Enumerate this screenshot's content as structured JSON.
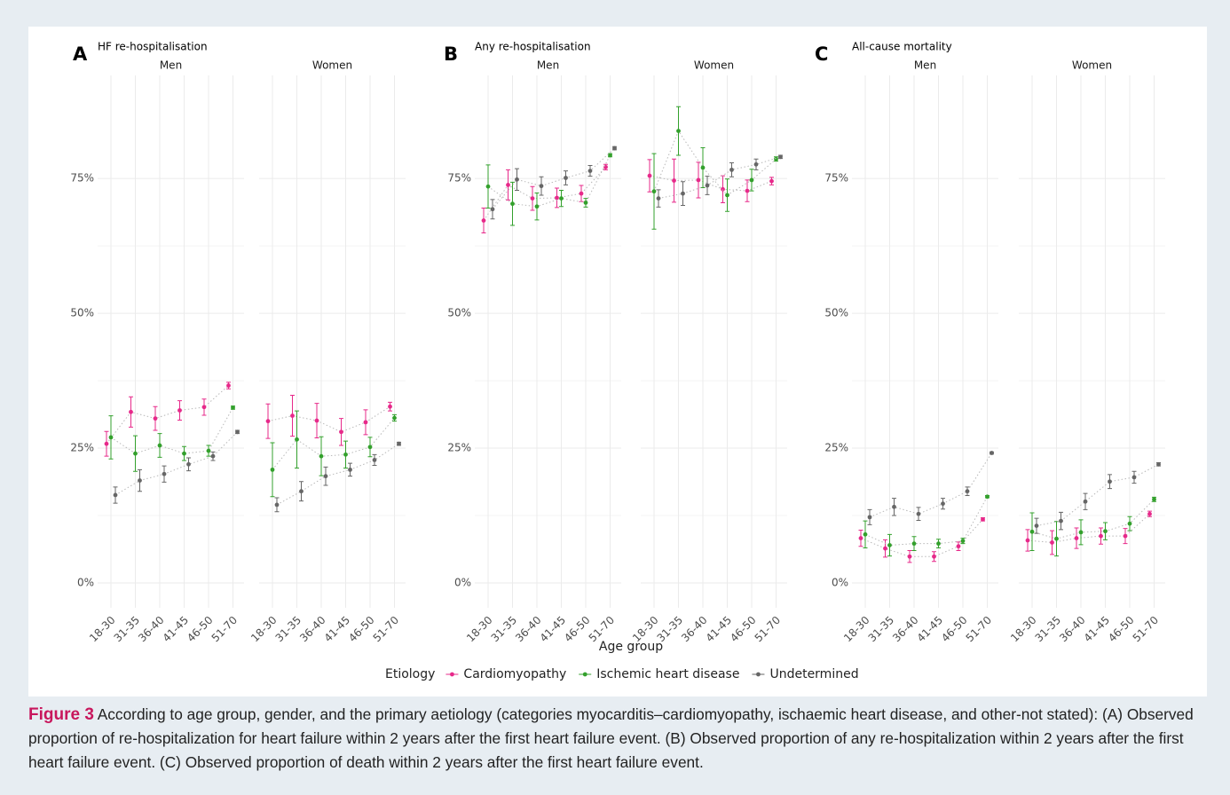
{
  "chart_data": [
    {
      "type": "line",
      "panel_label": "A",
      "title": "HF re-hospitalisation",
      "categories": [
        "18-30",
        "31-35",
        "36-40",
        "41-45",
        "46-50",
        "51-70"
      ],
      "ylim": [
        -4.6,
        94.1
      ],
      "yticks": [
        {
          "value": 0,
          "label": "0%"
        },
        {
          "value": 25,
          "label": "25%"
        },
        {
          "value": 50,
          "label": "50%"
        },
        {
          "value": 75,
          "label": "75%"
        }
      ],
      "grid": true,
      "facets": [
        {
          "name": "Men",
          "series": [
            {
              "name": "Cardiomyopathy",
              "color": "#e7298a",
              "values": [
                25.8,
                31.7,
                30.5,
                32,
                32.6,
                36.6
              ],
              "errors": [
                2.3,
                2.8,
                2.2,
                1.8,
                1.5,
                0.6
              ]
            },
            {
              "name": "Ischemic heart disease",
              "color": "#33a02c",
              "values": [
                27,
                24,
                25.5,
                24,
                24.5,
                32.5
              ],
              "errors": [
                4,
                3.3,
                2.2,
                1.3,
                1,
                0.3
              ]
            },
            {
              "name": "Undetermined",
              "color": "#666666",
              "values": [
                16.3,
                19,
                20.2,
                22,
                23.5,
                28
              ],
              "errors": [
                1.5,
                2,
                1.5,
                1.2,
                0.8,
                0.3
              ]
            }
          ]
        },
        {
          "name": "Women",
          "series": [
            {
              "name": "Cardiomyopathy",
              "color": "#e7298a",
              "values": [
                30,
                31,
                30.1,
                28,
                29.8,
                32.7
              ],
              "errors": [
                3.2,
                3.8,
                3.2,
                2.5,
                2.3,
                0.8
              ]
            },
            {
              "name": "Ischemic heart disease",
              "color": "#33a02c",
              "values": [
                21,
                26.6,
                23.5,
                23.8,
                25.2,
                30.6
              ],
              "errors": [
                5,
                5.3,
                3.6,
                2.5,
                1.8,
                0.6
              ]
            },
            {
              "name": "Undetermined",
              "color": "#666666",
              "values": [
                14.5,
                17,
                19.8,
                21,
                22.8,
                25.8
              ],
              "errors": [
                1.3,
                1.8,
                1.7,
                1.2,
                1,
                0.3
              ]
            }
          ]
        }
      ]
    },
    {
      "type": "line",
      "panel_label": "B",
      "title": "Any re-hospitalisation",
      "categories": [
        "18-30",
        "31-35",
        "36-40",
        "41-45",
        "46-50",
        "51-70"
      ],
      "ylim": [
        -4.6,
        94.1
      ],
      "yticks": [
        {
          "value": 0,
          "label": "0%"
        },
        {
          "value": 25,
          "label": "25%"
        },
        {
          "value": 50,
          "label": "50%"
        },
        {
          "value": 75,
          "label": "75%"
        }
      ],
      "grid": true,
      "facets": [
        {
          "name": "Men",
          "series": [
            {
              "name": "Cardiomyopathy",
              "color": "#e7298a",
              "values": [
                67.2,
                73.8,
                71.3,
                71.4,
                72.2,
                77.1
              ],
              "errors": [
                2.3,
                2.8,
                2.2,
                1.8,
                1.5,
                0.5
              ]
            },
            {
              "name": "Ischemic heart disease",
              "color": "#33a02c",
              "values": [
                73.5,
                70.3,
                69.8,
                71.3,
                70.5,
                79.3
              ],
              "errors": [
                4,
                4,
                2.5,
                1.5,
                0.8,
                0.3
              ]
            },
            {
              "name": "Undetermined",
              "color": "#666666",
              "values": [
                69.3,
                74.8,
                73.6,
                75.1,
                76.4,
                80.6
              ],
              "errors": [
                1.8,
                2,
                1.7,
                1.3,
                1,
                0.3
              ]
            }
          ]
        },
        {
          "name": "Women",
          "series": [
            {
              "name": "Cardiomyopathy",
              "color": "#e7298a",
              "values": [
                75.5,
                74.6,
                74.7,
                73,
                72.7,
                74.5
              ],
              "errors": [
                3,
                4,
                3.3,
                2.5,
                2,
                0.7
              ]
            },
            {
              "name": "Ischemic heart disease",
              "color": "#33a02c",
              "values": [
                72.6,
                83.8,
                77,
                71.9,
                74.7,
                78.6
              ],
              "errors": [
                7,
                4.5,
                3.7,
                3,
                2,
                0.4
              ]
            },
            {
              "name": "Undetermined",
              "color": "#666666",
              "values": [
                71.3,
                72.2,
                73.7,
                76.6,
                77.6,
                79
              ],
              "errors": [
                1.6,
                2.2,
                1.7,
                1.3,
                1,
                0.3
              ]
            }
          ]
        }
      ]
    },
    {
      "type": "line",
      "panel_label": "C",
      "title": "All-cause mortality",
      "categories": [
        "18-30",
        "31-35",
        "36-40",
        "41-45",
        "46-50",
        "51-70"
      ],
      "ylim": [
        -4.6,
        94.1
      ],
      "yticks": [
        {
          "value": 0,
          "label": "0%"
        },
        {
          "value": 25,
          "label": "25%"
        },
        {
          "value": 50,
          "label": "50%"
        },
        {
          "value": 75,
          "label": "75%"
        }
      ],
      "grid": true,
      "facets": [
        {
          "name": "Men",
          "series": [
            {
              "name": "Cardiomyopathy",
              "color": "#e7298a",
              "values": [
                8.3,
                6.4,
                4.9,
                4.9,
                6.8,
                11.8
              ],
              "errors": [
                1.5,
                1.6,
                1.1,
                0.9,
                0.8,
                0.3
              ]
            },
            {
              "name": "Ischemic heart disease",
              "color": "#33a02c",
              "values": [
                9,
                7,
                7.3,
                7.3,
                7.8,
                16
              ],
              "errors": [
                2.5,
                2,
                1.3,
                0.8,
                0.5,
                0.2
              ]
            },
            {
              "name": "Undetermined",
              "color": "#666666",
              "values": [
                12.2,
                14.1,
                12.8,
                14.7,
                17,
                24.1
              ],
              "errors": [
                1.4,
                1.6,
                1.2,
                1,
                0.8,
                0.2
              ]
            }
          ]
        },
        {
          "name": "Women",
          "series": [
            {
              "name": "Cardiomyopathy",
              "color": "#e7298a",
              "values": [
                7.9,
                7.5,
                8.3,
                8.7,
                8.7,
                12.8
              ],
              "errors": [
                2,
                2.2,
                1.9,
                1.5,
                1.4,
                0.5
              ]
            },
            {
              "name": "Ischemic heart disease",
              "color": "#33a02c",
              "values": [
                9.5,
                8.2,
                9.4,
                9.6,
                11,
                15.5
              ],
              "errors": [
                3.5,
                3.2,
                2.3,
                1.6,
                1.3,
                0.4
              ]
            },
            {
              "name": "Undetermined",
              "color": "#666666",
              "values": [
                10.6,
                11.5,
                15.1,
                18.8,
                19.6,
                22
              ],
              "errors": [
                1.4,
                1.6,
                1.5,
                1.3,
                1.1,
                0.3
              ]
            }
          ]
        }
      ]
    }
  ],
  "x_label": "Age group",
  "legend_title": "Etiology",
  "caption": {
    "label": "Figure 3",
    "text": "According to age group, gender, and the primary aetiology (categories myocarditis–cardiomyopathy, ischaemic heart disease, and other-not stated): (A) Observed proportion of re-hospitalization for heart failure within 2 years after the first heart failure event. (B) Observed proportion of any re-hospitalization within 2 years after the first heart failure event. (C) Observed proportion of death within 2 years after the first heart failure event."
  }
}
